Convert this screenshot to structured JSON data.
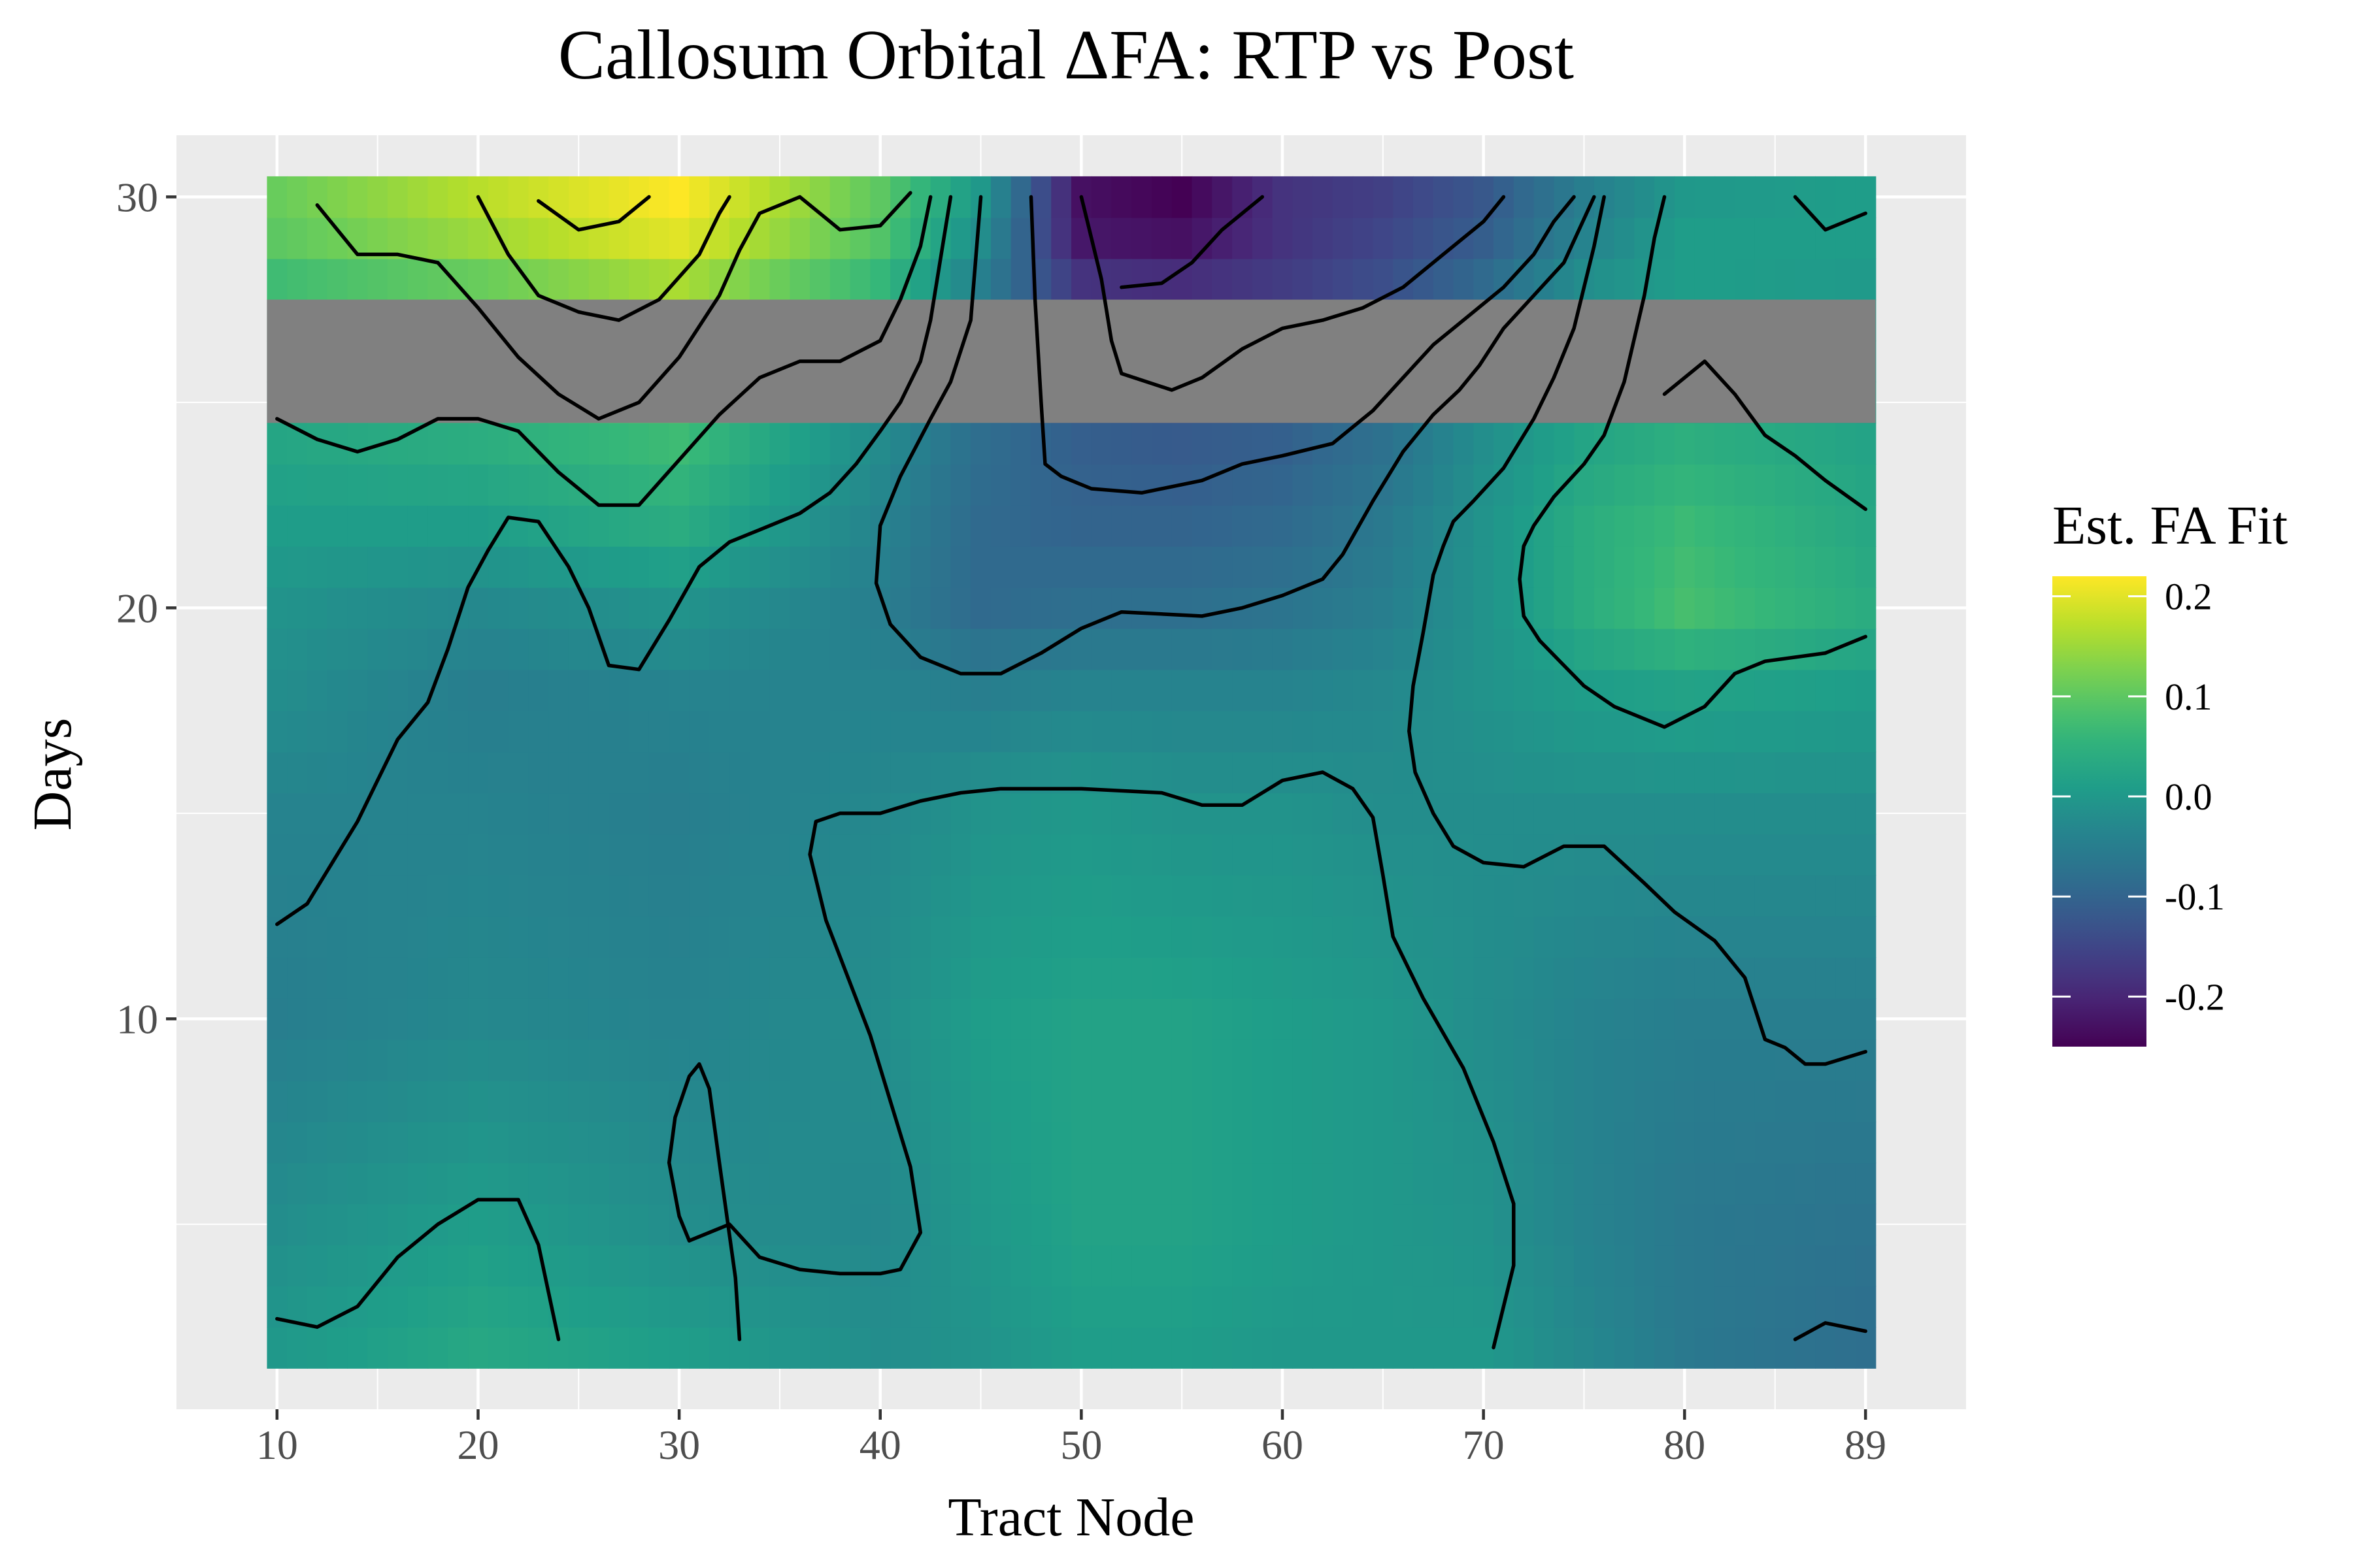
{
  "chart_data": {
    "type": "heatmap",
    "title": "Callosum Orbital ΔFA: RTP vs Post",
    "xlabel": "Tract Node",
    "ylabel": "Days",
    "xlim": [
      5,
      94
    ],
    "ylim": [
      0.5,
      31.5
    ],
    "x_ticks": [
      10,
      20,
      30,
      40,
      50,
      60,
      70,
      80,
      89
    ],
    "x_tick_labels": [
      "10",
      "20",
      "30",
      "40",
      "50",
      "60",
      "70",
      "80",
      "89"
    ],
    "y_ticks": [
      10,
      20,
      30
    ],
    "y_tick_labels": [
      "10",
      "20",
      "30"
    ],
    "tile_x_range": [
      10,
      89
    ],
    "tile_y_range": [
      2,
      30
    ],
    "masked_y_range": [
      24.5,
      27.5
    ],
    "masked_color": "#808080",
    "legend": {
      "title": "Est. FA Fit",
      "position": "right",
      "min": -0.25,
      "max": 0.22,
      "ticks": [
        0.2,
        0.1,
        0.0,
        -0.1,
        -0.2
      ],
      "tick_labels": [
        "0.2",
        "0.1",
        "0.0",
        "-0.1",
        "-0.2"
      ]
    },
    "colormap": [
      "#440154",
      "#482878",
      "#3e4989",
      "#31688e",
      "#26828e",
      "#1f9e89",
      "#35b779",
      "#6ece58",
      "#b5de2b",
      "#fde725"
    ],
    "value_grid": {
      "x": [
        10,
        20,
        30,
        40,
        45,
        50,
        55,
        60,
        65,
        70,
        75,
        80,
        89
      ],
      "y": [
        2,
        5,
        10,
        15,
        18,
        20,
        22,
        24.5,
        27.5,
        29,
        30
      ],
      "z": [
        [
          0.0,
          0.03,
          0.01,
          -0.02,
          -0.01,
          0.01,
          0.01,
          0.0,
          0.0,
          0.0,
          -0.03,
          -0.06,
          -0.08
        ],
        [
          -0.02,
          0.01,
          -0.02,
          -0.03,
          0.0,
          0.02,
          0.02,
          0.01,
          0.0,
          -0.01,
          -0.04,
          -0.06,
          -0.07
        ],
        [
          -0.05,
          -0.03,
          -0.04,
          -0.02,
          0.01,
          0.02,
          0.02,
          0.01,
          0.0,
          -0.02,
          -0.04,
          -0.05,
          -0.05
        ],
        [
          -0.04,
          -0.04,
          -0.05,
          -0.03,
          -0.01,
          0.0,
          -0.01,
          -0.01,
          -0.02,
          -0.02,
          -0.02,
          -0.02,
          -0.02
        ],
        [
          -0.02,
          -0.05,
          -0.04,
          -0.04,
          -0.05,
          -0.04,
          -0.04,
          -0.04,
          -0.03,
          -0.01,
          0.01,
          0.02,
          0.01
        ],
        [
          -0.01,
          -0.03,
          -0.01,
          -0.05,
          -0.09,
          -0.08,
          -0.08,
          -0.07,
          -0.05,
          -0.01,
          0.04,
          0.08,
          0.04
        ],
        [
          0.01,
          0.01,
          0.04,
          -0.04,
          -0.09,
          -0.1,
          -0.1,
          -0.09,
          -0.06,
          -0.01,
          0.04,
          0.07,
          0.03
        ],
        [
          0.03,
          0.05,
          0.08,
          -0.02,
          -0.08,
          -0.11,
          -0.12,
          -0.11,
          -0.08,
          -0.02,
          0.02,
          0.04,
          0.02
        ],
        [
          0.06,
          0.09,
          0.14,
          0.05,
          -0.06,
          -0.16,
          -0.17,
          -0.16,
          -0.13,
          -0.08,
          -0.01,
          0.01,
          0.0
        ],
        [
          0.1,
          0.15,
          0.2,
          0.09,
          -0.02,
          -0.22,
          -0.23,
          -0.18,
          -0.15,
          -0.11,
          -0.04,
          0.01,
          0.01
        ],
        [
          0.11,
          0.17,
          0.22,
          0.1,
          0.0,
          -0.23,
          -0.25,
          -0.18,
          -0.16,
          -0.12,
          -0.05,
          0.0,
          0.01
        ]
      ]
    },
    "contours": [
      [
        [
          10,
          2.7
        ],
        [
          12,
          2.5
        ],
        [
          14,
          3.0
        ],
        [
          16,
          4.2
        ],
        [
          18,
          5.0
        ],
        [
          20,
          5.6
        ],
        [
          22,
          5.6
        ],
        [
          23,
          4.5
        ],
        [
          24,
          2.2
        ]
      ],
      [
        [
          33,
          2.2
        ],
        [
          32.8,
          3.7
        ],
        [
          32,
          6.5
        ],
        [
          31.5,
          8.3
        ],
        [
          31,
          8.9
        ],
        [
          30.5,
          8.6
        ],
        [
          29.8,
          7.6
        ],
        [
          29.5,
          6.5
        ],
        [
          30,
          5.2
        ],
        [
          30.5,
          4.6
        ]
      ],
      [
        [
          30.5,
          4.6
        ],
        [
          32.5,
          5.0
        ],
        [
          34,
          4.2
        ],
        [
          36,
          3.9
        ],
        [
          38,
          3.8
        ],
        [
          40,
          3.8
        ],
        [
          41,
          3.9
        ],
        [
          42,
          4.8
        ],
        [
          41.5,
          6.4
        ],
        [
          39.5,
          9.6
        ],
        [
          37.3,
          12.4
        ],
        [
          36.5,
          14.0
        ],
        [
          36.8,
          14.8
        ],
        [
          38,
          15.0
        ],
        [
          40,
          15.0
        ],
        [
          42,
          15.3
        ],
        [
          44,
          15.5
        ],
        [
          46,
          15.6
        ],
        [
          50,
          15.6
        ],
        [
          54,
          15.5
        ],
        [
          56,
          15.2
        ],
        [
          58,
          15.2
        ],
        [
          60,
          15.8
        ],
        [
          62,
          16.0
        ],
        [
          63.5,
          15.6
        ],
        [
          64.5,
          14.9
        ],
        [
          65,
          13.5
        ],
        [
          65.5,
          12.0
        ],
        [
          67,
          10.5
        ],
        [
          69,
          8.8
        ],
        [
          70.5,
          7.0
        ],
        [
          71.5,
          5.5
        ],
        [
          71.5,
          4.0
        ],
        [
          71,
          3.0
        ],
        [
          70.5,
          2.0
        ]
      ],
      [
        [
          10,
          12.3
        ],
        [
          11.5,
          12.8
        ],
        [
          12.5,
          13.6
        ],
        [
          14,
          14.8
        ],
        [
          15,
          15.8
        ],
        [
          16,
          16.8
        ],
        [
          17.5,
          17.7
        ],
        [
          18.5,
          19.0
        ],
        [
          19.5,
          20.5
        ],
        [
          20.5,
          21.4
        ],
        [
          21.5,
          22.2
        ],
        [
          23,
          22.1
        ],
        [
          24.5,
          21.0
        ],
        [
          25.5,
          20.0
        ],
        [
          26.5,
          18.6
        ],
        [
          28,
          18.5
        ],
        [
          29.5,
          19.7
        ],
        [
          31,
          21.0
        ],
        [
          32.5,
          21.6
        ],
        [
          34,
          21.9
        ],
        [
          36,
          22.3
        ],
        [
          37.5,
          22.8
        ],
        [
          38.8,
          23.5
        ],
        [
          40,
          24.3
        ],
        [
          41,
          25.0
        ],
        [
          42,
          26.0
        ],
        [
          42.5,
          27.0
        ],
        [
          43,
          28.5
        ],
        [
          43.5,
          30.0
        ]
      ],
      [
        [
          10,
          24.6
        ],
        [
          12,
          24.1
        ],
        [
          14,
          23.8
        ],
        [
          16,
          24.1
        ],
        [
          18,
          24.6
        ],
        [
          20,
          24.6
        ],
        [
          22,
          24.3
        ],
        [
          24,
          23.3
        ],
        [
          26,
          22.5
        ],
        [
          28,
          22.5
        ],
        [
          30,
          23.6
        ],
        [
          32,
          24.7
        ],
        [
          34,
          25.6
        ],
        [
          36,
          26.0
        ],
        [
          38,
          26.0
        ],
        [
          40,
          26.5
        ],
        [
          41,
          27.5
        ],
        [
          42,
          28.8
        ],
        [
          42.5,
          30.0
        ]
      ],
      [
        [
          12,
          29.8
        ],
        [
          14,
          28.6
        ],
        [
          16,
          28.6
        ],
        [
          18,
          28.4
        ],
        [
          20,
          27.3
        ],
        [
          22,
          26.1
        ],
        [
          24,
          25.2
        ],
        [
          26,
          24.6
        ],
        [
          28,
          25.0
        ],
        [
          30,
          26.1
        ],
        [
          32,
          27.6
        ],
        [
          33,
          28.7
        ],
        [
          34,
          29.6
        ],
        [
          36,
          30.0
        ],
        [
          38,
          29.2
        ],
        [
          40,
          29.3
        ],
        [
          41.5,
          30.1
        ]
      ],
      [
        [
          20,
          30.0
        ],
        [
          21.5,
          28.6
        ],
        [
          23,
          27.6
        ],
        [
          25,
          27.2
        ],
        [
          27,
          27.0
        ],
        [
          29,
          27.5
        ],
        [
          31,
          28.6
        ],
        [
          32,
          29.6
        ],
        [
          32.5,
          30.0
        ]
      ],
      [
        [
          23,
          29.9
        ],
        [
          25,
          29.2
        ],
        [
          27,
          29.4
        ],
        [
          28.5,
          30.0
        ]
      ],
      [
        [
          45,
          30.0
        ],
        [
          44.8,
          28.8
        ],
        [
          44.5,
          27.0
        ],
        [
          43.5,
          25.5
        ],
        [
          42.5,
          24.6
        ],
        [
          41,
          23.2
        ],
        [
          40,
          22.0
        ],
        [
          39.8,
          20.6
        ],
        [
          40.5,
          19.6
        ],
        [
          42,
          18.8
        ],
        [
          44,
          18.4
        ],
        [
          46,
          18.4
        ],
        [
          48,
          18.9
        ],
        [
          50,
          19.5
        ],
        [
          52,
          19.9
        ],
        [
          56,
          19.8
        ],
        [
          58,
          20.0
        ],
        [
          60,
          20.3
        ],
        [
          62,
          20.7
        ],
        [
          63,
          21.3
        ],
        [
          64.5,
          22.6
        ],
        [
          66,
          23.8
        ],
        [
          67.5,
          24.7
        ],
        [
          68.8,
          25.3
        ],
        [
          69.8,
          25.9
        ],
        [
          71,
          26.8
        ],
        [
          72.5,
          27.6
        ],
        [
          74,
          28.4
        ],
        [
          75.5,
          30.0
        ]
      ],
      [
        [
          47.5,
          30.0
        ],
        [
          47.7,
          27.5
        ],
        [
          48,
          25.0
        ],
        [
          48.2,
          23.5
        ],
        [
          49,
          23.2
        ],
        [
          50.5,
          22.9
        ],
        [
          53,
          22.8
        ],
        [
          56,
          23.1
        ],
        [
          58,
          23.5
        ],
        [
          60,
          23.7
        ],
        [
          62.5,
          24.0
        ],
        [
          64.5,
          24.8
        ],
        [
          66,
          25.6
        ],
        [
          67.5,
          26.4
        ],
        [
          69,
          27.0
        ],
        [
          71,
          27.8
        ],
        [
          72.5,
          28.6
        ],
        [
          73.5,
          29.4
        ],
        [
          74.5,
          30.0
        ]
      ],
      [
        [
          50,
          30.0
        ],
        [
          50.5,
          29.0
        ],
        [
          51,
          28.0
        ],
        [
          51.5,
          26.5
        ],
        [
          52,
          25.7
        ],
        [
          54.5,
          25.3
        ],
        [
          56,
          25.6
        ],
        [
          58,
          26.3
        ],
        [
          60,
          26.8
        ],
        [
          62,
          27.0
        ],
        [
          64,
          27.3
        ],
        [
          66,
          27.8
        ],
        [
          68,
          28.6
        ],
        [
          70,
          29.4
        ],
        [
          71,
          30.0
        ]
      ],
      [
        [
          59,
          30.0
        ],
        [
          57,
          29.2
        ],
        [
          55.5,
          28.4
        ],
        [
          54,
          27.9
        ],
        [
          52,
          27.8
        ]
      ],
      [
        [
          76,
          30.0
        ],
        [
          75.5,
          28.8
        ],
        [
          75,
          27.8
        ],
        [
          74.5,
          26.8
        ],
        [
          73.5,
          25.6
        ],
        [
          72.5,
          24.6
        ],
        [
          71,
          23.4
        ],
        [
          69.5,
          22.6
        ],
        [
          68.5,
          22.1
        ],
        [
          68,
          21.5
        ],
        [
          67.5,
          20.8
        ],
        [
          67,
          19.4
        ],
        [
          66.5,
          18.1
        ],
        [
          66.3,
          17.0
        ],
        [
          66.6,
          16.0
        ],
        [
          67.5,
          15.0
        ],
        [
          68.5,
          14.2
        ],
        [
          70,
          13.8
        ],
        [
          72,
          13.7
        ],
        [
          74,
          14.2
        ],
        [
          76,
          14.2
        ],
        [
          78,
          13.3
        ],
        [
          79.5,
          12.6
        ],
        [
          81.5,
          11.9
        ],
        [
          83,
          11.0
        ],
        [
          84,
          9.5
        ],
        [
          85,
          9.3
        ],
        [
          86,
          8.9
        ],
        [
          87,
          8.9
        ],
        [
          89,
          9.2
        ]
      ],
      [
        [
          79,
          30.0
        ],
        [
          78.5,
          29.0
        ],
        [
          78,
          27.6
        ],
        [
          77,
          25.5
        ],
        [
          76,
          24.2
        ],
        [
          75,
          23.5
        ],
        [
          73.5,
          22.7
        ],
        [
          72.5,
          22.0
        ],
        [
          72,
          21.5
        ],
        [
          71.8,
          20.7
        ],
        [
          72,
          19.8
        ],
        [
          72.8,
          19.2
        ],
        [
          74,
          18.6
        ],
        [
          75,
          18.1
        ],
        [
          76.5,
          17.6
        ],
        [
          79,
          17.1
        ],
        [
          81,
          17.6
        ],
        [
          82.5,
          18.4
        ],
        [
          84,
          18.7
        ],
        [
          87,
          18.9
        ],
        [
          89,
          19.3
        ]
      ],
      [
        [
          79,
          25.2
        ],
        [
          81,
          26.0
        ],
        [
          82.5,
          25.2
        ],
        [
          84,
          24.2
        ],
        [
          85.5,
          23.7
        ],
        [
          87,
          23.1
        ],
        [
          89,
          22.4
        ]
      ],
      [
        [
          85.5,
          30.0
        ],
        [
          87,
          29.2
        ],
        [
          89,
          29.6
        ]
      ],
      [
        [
          85.5,
          2.2
        ],
        [
          87,
          2.6
        ],
        [
          89,
          2.4
        ]
      ]
    ]
  }
}
